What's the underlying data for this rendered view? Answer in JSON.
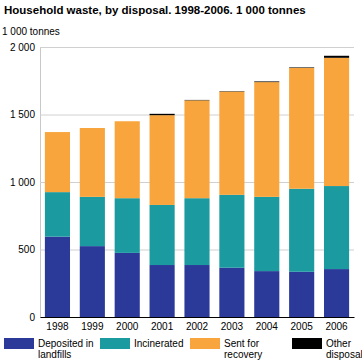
{
  "chart_data": {
    "type": "bar",
    "stacked": true,
    "title": "Household waste, by disposal. 1998-2006. 1 000 tonnes",
    "y_label": "1 000 tonnes",
    "categories": [
      "1998",
      "1999",
      "2000",
      "2001",
      "2002",
      "2003",
      "2004",
      "2005",
      "2006"
    ],
    "series": [
      {
        "name": "Deposited in landfills",
        "color": "#2b3a99",
        "values": [
          595,
          525,
          475,
          385,
          385,
          365,
          340,
          335,
          355
        ]
      },
      {
        "name": "Incinerated",
        "color": "#1b9aa0",
        "values": [
          330,
          365,
          405,
          445,
          495,
          540,
          550,
          615,
          615
        ]
      },
      {
        "name": "Sent for recovery",
        "color": "#f7a53c",
        "values": [
          445,
          510,
          570,
          665,
          725,
          765,
          850,
          895,
          950
        ]
      },
      {
        "name": "Other disposal",
        "color": "#000000",
        "values": [
          0,
          0,
          0,
          10,
          3,
          3,
          5,
          4,
          15
        ]
      }
    ],
    "ylim": [
      0,
      2000
    ],
    "yticks": [
      0,
      500,
      {
        "value": 1000,
        "label": "1 000"
      },
      {
        "value": 1500,
        "label": "1 500"
      },
      {
        "value": 2000,
        "label": "2 000"
      }
    ],
    "grid": true,
    "legend": "bottom"
  }
}
